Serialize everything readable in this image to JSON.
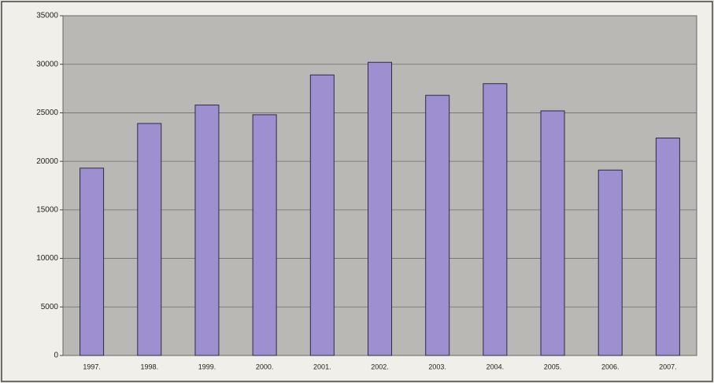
{
  "chart_data": {
    "type": "bar",
    "categories": [
      "1997.",
      "1998.",
      "1999.",
      "2000.",
      "2001.",
      "2002.",
      "2003.",
      "2004.",
      "2005.",
      "2006.",
      "2007."
    ],
    "values": [
      19300,
      23900,
      25800,
      24800,
      28900,
      30200,
      26800,
      28000,
      25200,
      19100,
      22400
    ],
    "color": "#9d8fd0",
    "ylim": [
      0,
      35000
    ],
    "yticks": [
      0,
      5000,
      10000,
      15000,
      20000,
      25000,
      30000,
      35000
    ],
    "grid": true
  }
}
